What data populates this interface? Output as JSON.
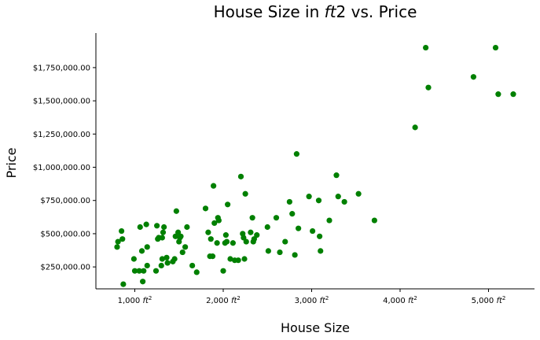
{
  "chart_data": {
    "type": "scatter",
    "title_main": "House Size in ",
    "title_italic": "ft",
    "title_end": "2 vs. Price",
    "xlabel": "House Size",
    "ylabel": "Price",
    "xlim": [
      560,
      5520
    ],
    "ylim": [
      85000,
      2010000
    ],
    "color": "#008000",
    "grid": false,
    "x_ticks": [
      {
        "value": 1000,
        "label": "1,000",
        "unit": "ft",
        "sup": "2"
      },
      {
        "value": 2000,
        "label": "2,000",
        "unit": "ft",
        "sup": "2"
      },
      {
        "value": 3000,
        "label": "3,000",
        "unit": "ft",
        "sup": "2"
      },
      {
        "value": 4000,
        "label": "4,000",
        "unit": "ft",
        "sup": "2"
      },
      {
        "value": 5000,
        "label": "5,000",
        "unit": "ft",
        "sup": "2"
      }
    ],
    "y_ticks": [
      {
        "value": 250000,
        "label": "$250,000.00"
      },
      {
        "value": 500000,
        "label": "$500,000.00"
      },
      {
        "value": 750000,
        "label": "$750,000.00"
      },
      {
        "value": 1000000,
        "label": "$1,000,000.00"
      },
      {
        "value": 1250000,
        "label": "$1,250,000.00"
      },
      {
        "value": 1500000,
        "label": "$1,500,000.00"
      },
      {
        "value": 1750000,
        "label": "$1,750,000.00"
      }
    ],
    "points": [
      [
        800,
        400000
      ],
      [
        810,
        440000
      ],
      [
        850,
        520000
      ],
      [
        860,
        460000
      ],
      [
        870,
        120000
      ],
      [
        990,
        310000
      ],
      [
        1000,
        220000
      ],
      [
        1050,
        220000
      ],
      [
        1060,
        550000
      ],
      [
        1080,
        370000
      ],
      [
        1090,
        140000
      ],
      [
        1100,
        220000
      ],
      [
        1130,
        570000
      ],
      [
        1140,
        400000
      ],
      [
        1140,
        260000
      ],
      [
        1240,
        220000
      ],
      [
        1250,
        560000
      ],
      [
        1260,
        460000
      ],
      [
        1270,
        470000
      ],
      [
        1300,
        260000
      ],
      [
        1310,
        470000
      ],
      [
        1310,
        310000
      ],
      [
        1320,
        510000
      ],
      [
        1330,
        550000
      ],
      [
        1360,
        320000
      ],
      [
        1370,
        280000
      ],
      [
        1430,
        290000
      ],
      [
        1450,
        310000
      ],
      [
        1460,
        480000
      ],
      [
        1470,
        670000
      ],
      [
        1490,
        510000
      ],
      [
        1500,
        440000
      ],
      [
        1510,
        470000
      ],
      [
        1520,
        480000
      ],
      [
        1540,
        360000
      ],
      [
        1570,
        400000
      ],
      [
        1590,
        550000
      ],
      [
        1650,
        260000
      ],
      [
        1700,
        210000
      ],
      [
        1800,
        690000
      ],
      [
        1830,
        510000
      ],
      [
        1850,
        330000
      ],
      [
        1860,
        460000
      ],
      [
        1880,
        330000
      ],
      [
        1890,
        860000
      ],
      [
        1900,
        580000
      ],
      [
        1930,
        430000
      ],
      [
        1940,
        620000
      ],
      [
        1950,
        600000
      ],
      [
        2000,
        220000
      ],
      [
        2020,
        430000
      ],
      [
        2030,
        490000
      ],
      [
        2040,
        440000
      ],
      [
        2050,
        720000
      ],
      [
        2080,
        310000
      ],
      [
        2110,
        430000
      ],
      [
        2130,
        300000
      ],
      [
        2170,
        300000
      ],
      [
        2200,
        930000
      ],
      [
        2220,
        500000
      ],
      [
        2230,
        470000
      ],
      [
        2240,
        310000
      ],
      [
        2250,
        800000
      ],
      [
        2260,
        440000
      ],
      [
        2310,
        510000
      ],
      [
        2330,
        620000
      ],
      [
        2340,
        440000
      ],
      [
        2350,
        460000
      ],
      [
        2380,
        490000
      ],
      [
        2500,
        550000
      ],
      [
        2510,
        370000
      ],
      [
        2600,
        620000
      ],
      [
        2640,
        360000
      ],
      [
        2700,
        440000
      ],
      [
        2750,
        740000
      ],
      [
        2780,
        650000
      ],
      [
        2810,
        340000
      ],
      [
        2830,
        1100000
      ],
      [
        2850,
        540000
      ],
      [
        2970,
        780000
      ],
      [
        3010,
        520000
      ],
      [
        3080,
        750000
      ],
      [
        3090,
        480000
      ],
      [
        3100,
        370000
      ],
      [
        3200,
        600000
      ],
      [
        3280,
        940000
      ],
      [
        3300,
        780000
      ],
      [
        3370,
        740000
      ],
      [
        3530,
        800000
      ],
      [
        3710,
        600000
      ],
      [
        4170,
        1300000
      ],
      [
        4290,
        1900000
      ],
      [
        4320,
        1600000
      ],
      [
        4830,
        1680000
      ],
      [
        5080,
        1900000
      ],
      [
        5110,
        1550000
      ],
      [
        5280,
        1550000
      ]
    ]
  }
}
